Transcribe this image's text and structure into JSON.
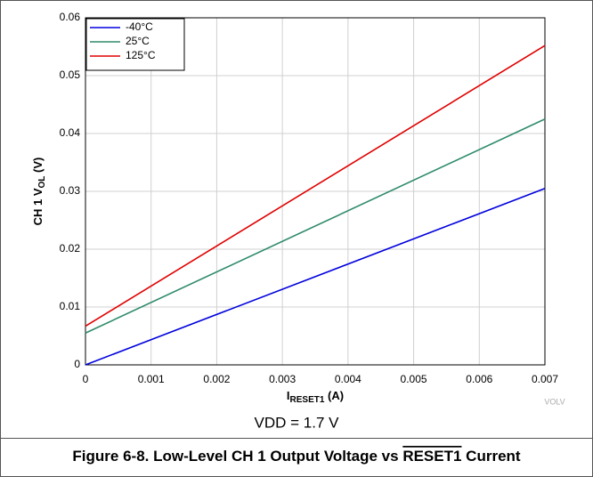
{
  "chart_data": {
    "type": "line",
    "xlabel": [
      "I",
      "RESET1",
      " (A)"
    ],
    "ylabel": [
      "CH 1 V",
      "OL",
      " (V)"
    ],
    "note": "VDD = 1.7 V",
    "watermark": "VOLV",
    "caption": [
      "Figure 6-8. Low-Level CH 1 Output Voltage vs ",
      "RESET1",
      " Current"
    ],
    "x": [
      0,
      0.007
    ],
    "series": [
      {
        "name": "-40°C",
        "color": "#0000dd",
        "values": [
          0,
          0.0305
        ]
      },
      {
        "name": "25°C",
        "color": "#2e8b6a",
        "values": [
          0.0055,
          0.0425
        ]
      },
      {
        "name": "125°C",
        "color": "#e00000",
        "values": [
          0.0067,
          0.0552
        ]
      }
    ],
    "xlim": [
      0,
      0.007
    ],
    "xticks": [
      0,
      0.001,
      0.002,
      0.003,
      0.004,
      0.005,
      0.006,
      0.007
    ],
    "ylim": [
      0,
      0.06
    ],
    "yticks": [
      0,
      0.01,
      0.02,
      0.03,
      0.04,
      0.05,
      0.06
    ],
    "grid": true,
    "legend": "upper left"
  }
}
